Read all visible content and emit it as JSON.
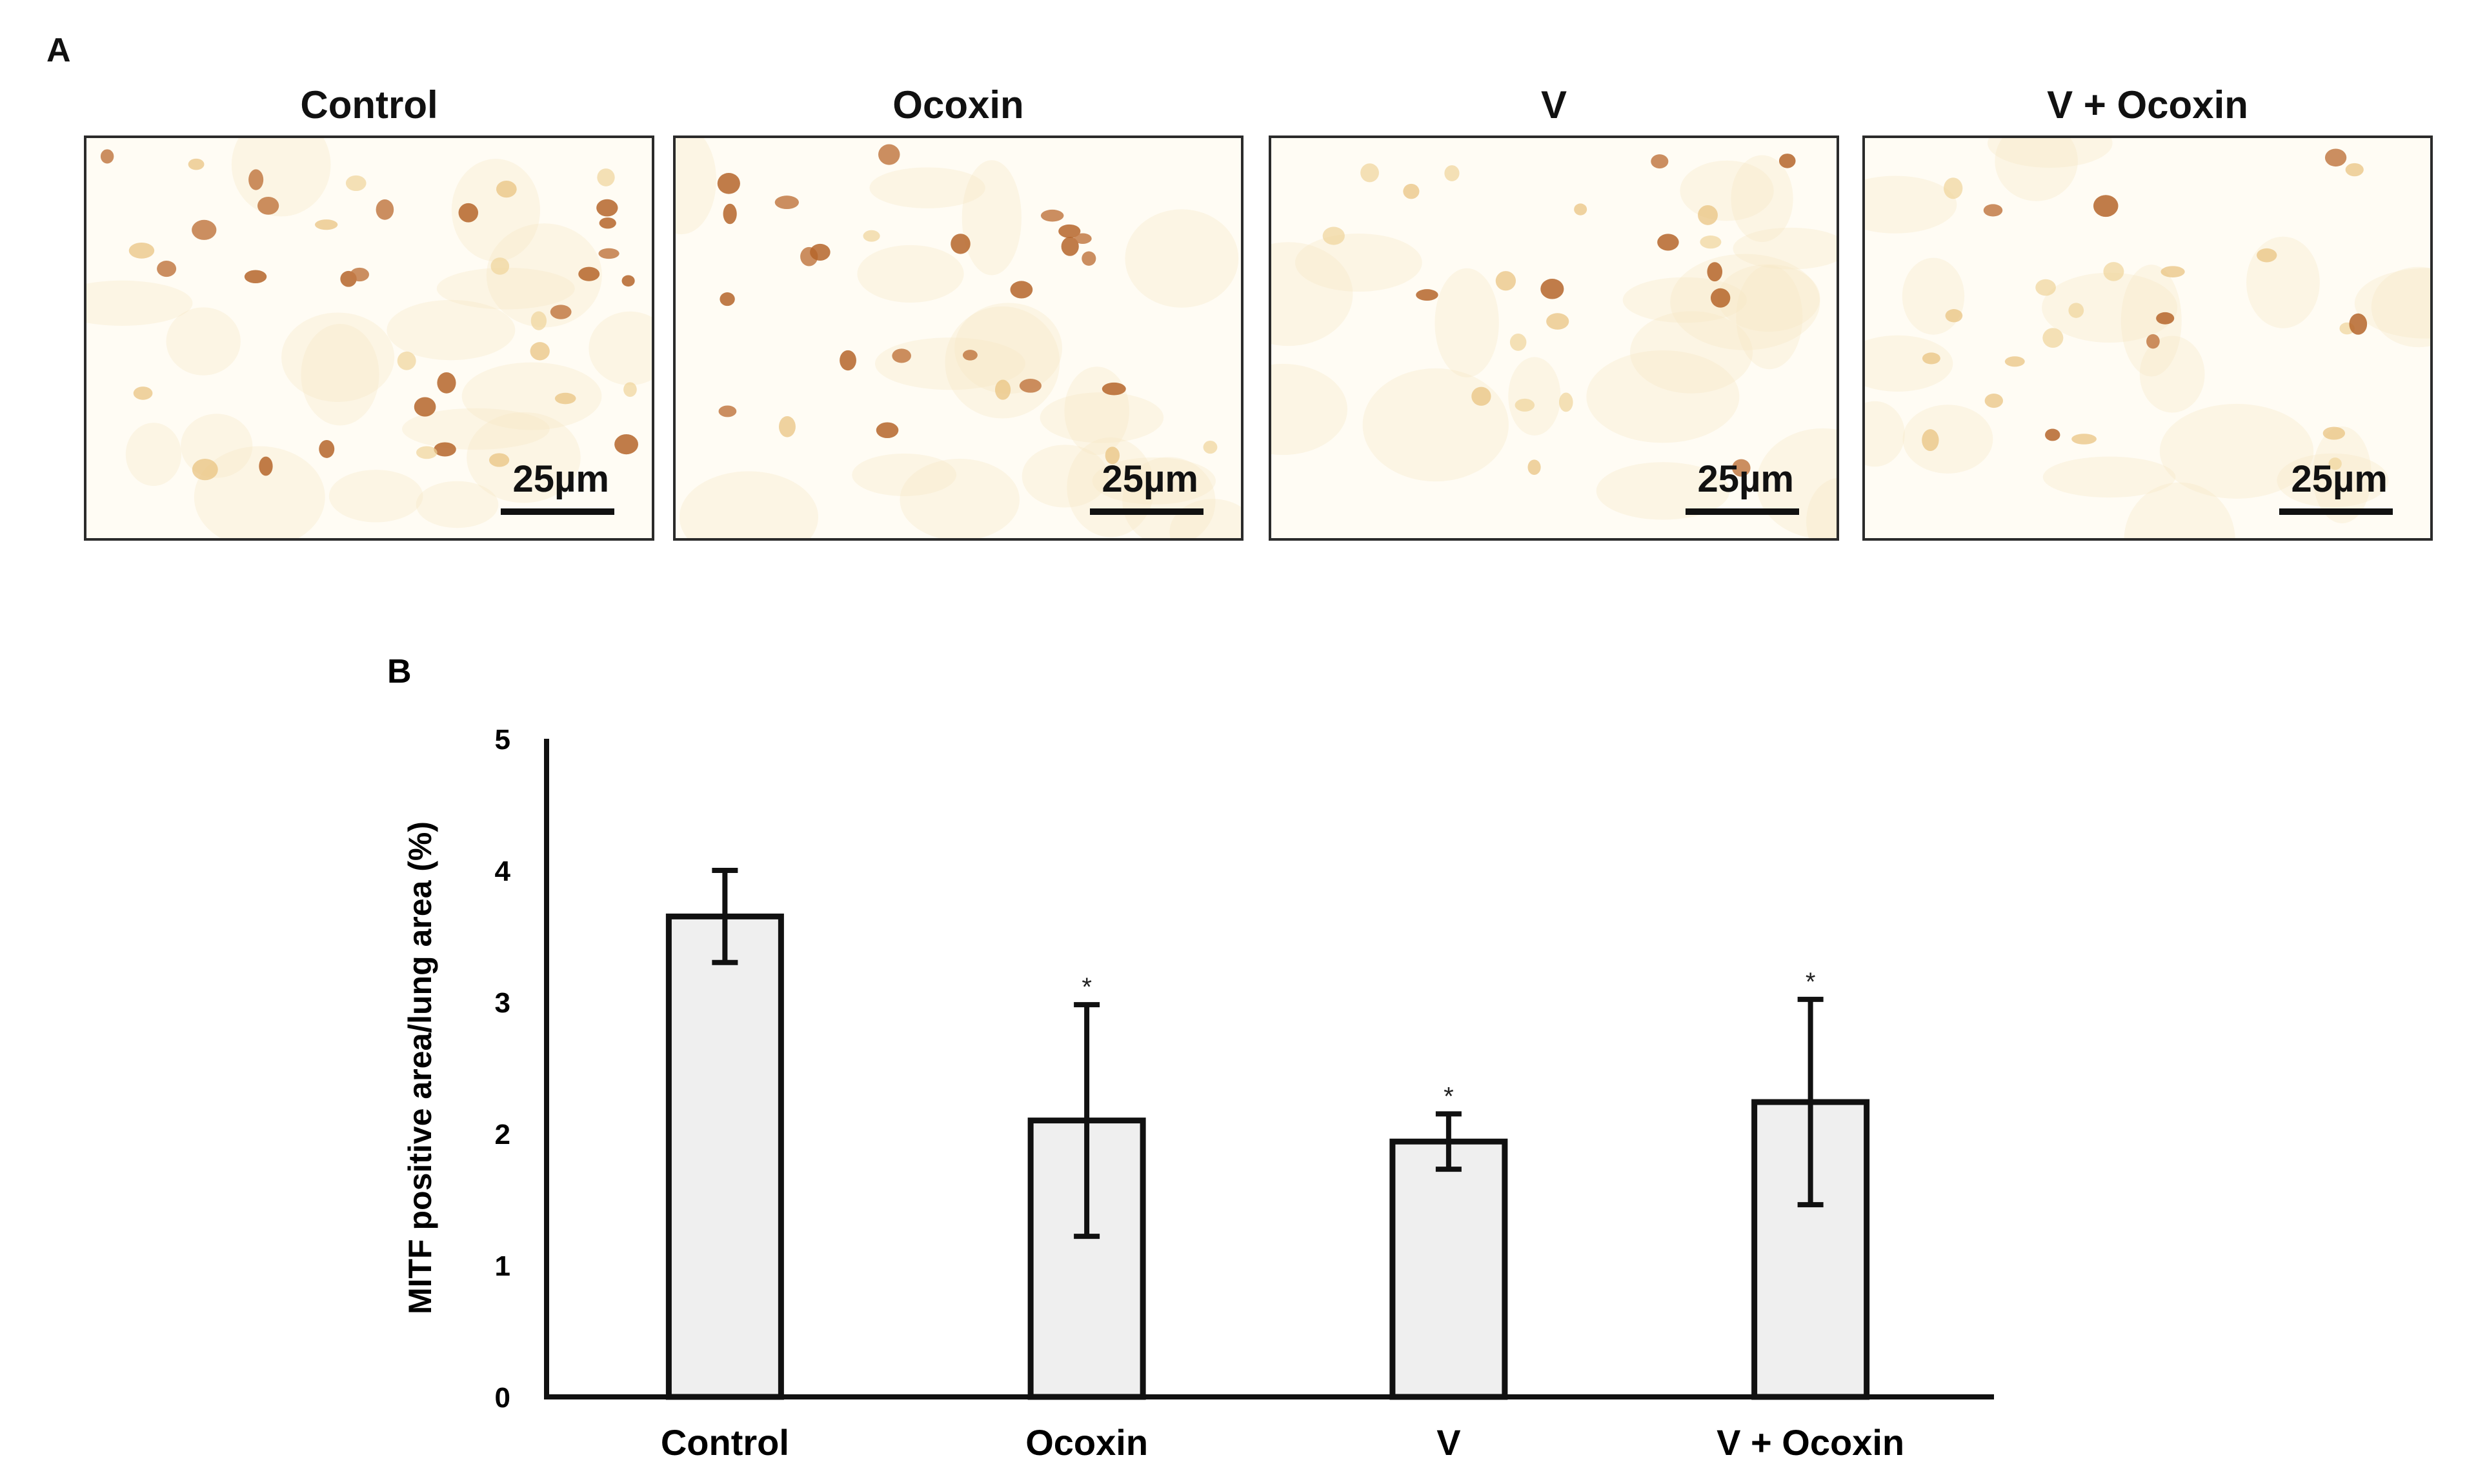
{
  "panel_a": {
    "label": "A",
    "images": [
      {
        "title": "Control",
        "scale": "25µm"
      },
      {
        "title": "Ocoxin",
        "scale": "25µm"
      },
      {
        "title": "V",
        "scale": "25µm"
      },
      {
        "title": "V + Ocoxin",
        "scale": "25µm"
      }
    ]
  },
  "panel_b": {
    "label": "B"
  },
  "colors": {
    "bar_fill": "#efefef",
    "bar_stroke": "#111111",
    "stain": "#b5652a"
  },
  "chart_data": {
    "type": "bar",
    "categories": [
      "Control",
      "Ocoxin",
      "V",
      "V + Ocoxin"
    ],
    "values": [
      3.65,
      2.1,
      1.94,
      2.24
    ],
    "errors": [
      0.35,
      0.88,
      0.21,
      0.78
    ],
    "significance": [
      "",
      "*",
      "*",
      "*"
    ],
    "ylim": [
      0,
      5
    ],
    "yticks": [
      0,
      1,
      2,
      3,
      4,
      5
    ],
    "ylabel": "MITF positive area/lung area (%)",
    "xlabel": "",
    "title": ""
  }
}
